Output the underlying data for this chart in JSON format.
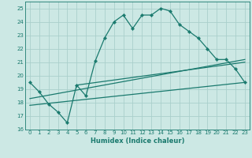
{
  "xlabel": "Humidex (Indice chaleur)",
  "bg_color": "#cce8e4",
  "grid_color": "#aacfcb",
  "line_color": "#1a7a6e",
  "xlim": [
    -0.5,
    23.5
  ],
  "ylim": [
    16,
    25.5
  ],
  "yticks": [
    16,
    17,
    18,
    19,
    20,
    21,
    22,
    23,
    24,
    25
  ],
  "xticks": [
    0,
    1,
    2,
    3,
    4,
    5,
    6,
    7,
    8,
    9,
    10,
    11,
    12,
    13,
    14,
    15,
    16,
    17,
    18,
    19,
    20,
    21,
    22,
    23
  ],
  "line1_x": [
    0,
    1,
    2,
    3,
    4,
    5,
    6,
    7,
    8,
    9,
    10,
    11,
    12,
    13,
    14,
    15,
    16,
    17,
    18,
    19,
    20,
    21,
    22,
    23
  ],
  "line1_y": [
    19.5,
    18.8,
    17.9,
    17.3,
    16.5,
    19.3,
    18.5,
    21.1,
    22.8,
    24.0,
    24.5,
    23.5,
    24.5,
    24.5,
    25.0,
    24.8,
    23.8,
    23.3,
    22.8,
    22.0,
    21.2,
    21.2,
    20.5,
    19.5
  ],
  "line2_x": [
    0,
    23
  ],
  "line2_y": [
    18.3,
    21.2
  ],
  "line3_x": [
    0,
    23
  ],
  "line3_y": [
    17.8,
    19.5
  ],
  "line4_x": [
    5,
    23
  ],
  "line4_y": [
    19.3,
    21.0
  ]
}
